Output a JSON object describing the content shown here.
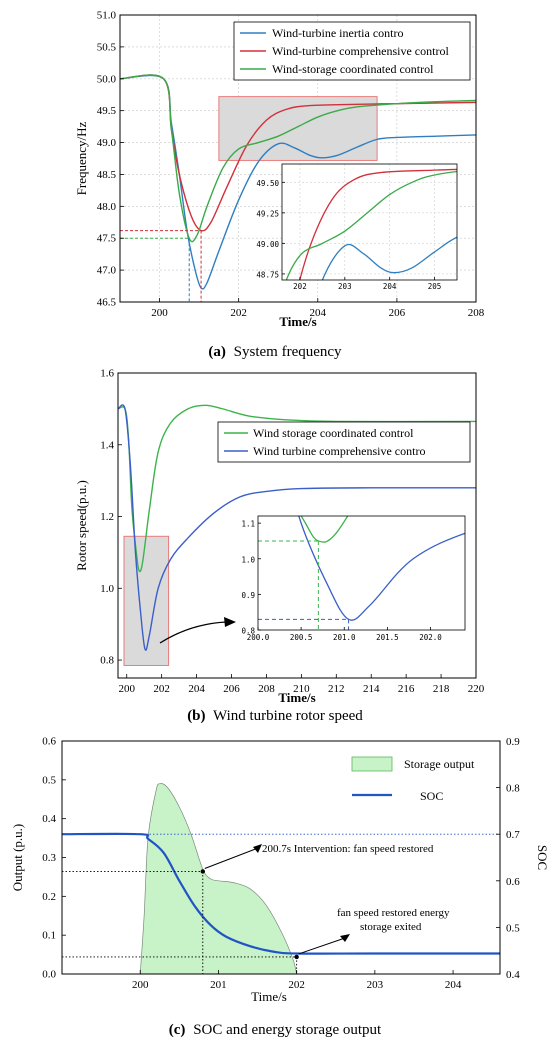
{
  "colors": {
    "blue": "#2f7fc0",
    "red": "#d2303a",
    "green": "#3aaa48",
    "blue_b": "#3b5fc8",
    "green_b": "#3cb44b",
    "soc_blue": "#2154c4",
    "fill_green": "#c8f2c8",
    "box_gray": "#dadada",
    "box_red": "#e87070",
    "grid": "#c8c8c8"
  },
  "chart_data": [
    {
      "type": "line",
      "caption_prefix": "(a)",
      "caption_text": "System frequency",
      "xlabel": "Time/s",
      "ylabel": "Frequency/Hz",
      "xlim": [
        199,
        208
      ],
      "ylim": [
        46.5,
        51.0
      ],
      "xticks": [
        "200",
        "202",
        "204",
        "206",
        "208"
      ],
      "yticks": [
        "46.5",
        "47.0",
        "47.5",
        "48.0",
        "48.5",
        "49.0",
        "49.5",
        "50.0",
        "50.5",
        "51.0"
      ],
      "grid": true,
      "legend_position": "top-right",
      "series": [
        {
          "name": "Wind-turbine inertia contro",
          "color": "blue",
          "points": [
            [
              199,
              50.0
            ],
            [
              200.1,
              50.0
            ],
            [
              200.3,
              49.3
            ],
            [
              200.5,
              48.5
            ],
            [
              200.7,
              47.6
            ],
            [
              200.9,
              47.0
            ],
            [
              201.05,
              46.72
            ],
            [
              201.2,
              46.8
            ],
            [
              201.5,
              47.3
            ],
            [
              202,
              48.1
            ],
            [
              202.5,
              48.7
            ],
            [
              203.0,
              48.98
            ],
            [
              203.4,
              48.92
            ],
            [
              203.8,
              48.8
            ],
            [
              204.1,
              48.76
            ],
            [
              204.5,
              48.8
            ],
            [
              205,
              48.93
            ],
            [
              205.5,
              49.05
            ],
            [
              206,
              49.08
            ],
            [
              207,
              49.1
            ],
            [
              208,
              49.12
            ]
          ]
        },
        {
          "name": "Wind-turbine comprehensive control",
          "color": "red",
          "points": [
            [
              199,
              50.0
            ],
            [
              200.1,
              50.0
            ],
            [
              200.3,
              49.2
            ],
            [
              200.5,
              48.5
            ],
            [
              200.8,
              47.85
            ],
            [
              201.05,
              47.62
            ],
            [
              201.3,
              47.75
            ],
            [
              201.7,
              48.3
            ],
            [
              202.2,
              48.95
            ],
            [
              202.7,
              49.35
            ],
            [
              203.2,
              49.52
            ],
            [
              203.8,
              49.58
            ],
            [
              205,
              49.6
            ],
            [
              206,
              49.61
            ],
            [
              208,
              49.63
            ]
          ]
        },
        {
          "name": "Wind-storage coordinated control",
          "color": "green",
          "points": [
            [
              199,
              50.0
            ],
            [
              200.1,
              50.0
            ],
            [
              200.3,
              49.2
            ],
            [
              200.5,
              48.2
            ],
            [
              200.75,
              47.5
            ],
            [
              200.95,
              47.55
            ],
            [
              201.2,
              48.0
            ],
            [
              201.6,
              48.6
            ],
            [
              202.0,
              48.9
            ],
            [
              202.5,
              49.0
            ],
            [
              203.0,
              49.1
            ],
            [
              203.5,
              49.25
            ],
            [
              204,
              49.4
            ],
            [
              204.5,
              49.5
            ],
            [
              205,
              49.56
            ],
            [
              206,
              49.61
            ],
            [
              207,
              49.64
            ],
            [
              208,
              49.66
            ]
          ]
        }
      ],
      "inset": {
        "xlim": [
          201.6,
          205.5
        ],
        "ylim": [
          48.7,
          49.65
        ],
        "xticks": [
          "202",
          "203",
          "204",
          "205"
        ],
        "yticks": [
          "48.75",
          "49.00",
          "49.25",
          "49.50"
        ]
      }
    },
    {
      "type": "line",
      "caption_prefix": "(b)",
      "caption_text": "Wind turbine rotor speed",
      "xlabel": "Time/s",
      "ylabel": "Rotor speed(p.u.)",
      "xlim": [
        199.5,
        220
      ],
      "ylim": [
        0.75,
        1.6
      ],
      "xticks": [
        "200",
        "202",
        "204",
        "206",
        "208",
        "210",
        "212",
        "214",
        "216",
        "218",
        "220"
      ],
      "yticks": [
        "0.8",
        "1.0",
        "1.2",
        "1.4",
        "1.6"
      ],
      "grid": false,
      "legend_position": "top-right",
      "series": [
        {
          "name": "Wind storage coordinated control",
          "color": "green_b",
          "points": [
            [
              199.5,
              1.5
            ],
            [
              199.9,
              1.5
            ],
            [
              200.1,
              1.42
            ],
            [
              200.3,
              1.22
            ],
            [
              200.55,
              1.1
            ],
            [
              200.7,
              1.05
            ],
            [
              200.9,
              1.07
            ],
            [
              201.3,
              1.22
            ],
            [
              201.8,
              1.38
            ],
            [
              202.5,
              1.46
            ],
            [
              203.5,
              1.5
            ],
            [
              204.5,
              1.51
            ],
            [
              205.5,
              1.5
            ],
            [
              207,
              1.48
            ],
            [
              209,
              1.47
            ],
            [
              212,
              1.465
            ],
            [
              220,
              1.465
            ]
          ]
        },
        {
          "name": "Wind turbine comprehensive contro",
          "color": "blue_b",
          "points": [
            [
              199.5,
              1.5
            ],
            [
              199.9,
              1.5
            ],
            [
              200.2,
              1.35
            ],
            [
              200.5,
              1.1
            ],
            [
              200.8,
              0.93
            ],
            [
              201.05,
              0.83
            ],
            [
              201.3,
              0.87
            ],
            [
              201.8,
              1.0
            ],
            [
              202.5,
              1.08
            ],
            [
              203.5,
              1.14
            ],
            [
              205,
              1.21
            ],
            [
              206.5,
              1.255
            ],
            [
              208,
              1.27
            ],
            [
              210,
              1.278
            ],
            [
              214,
              1.28
            ],
            [
              220,
              1.28
            ]
          ]
        }
      ],
      "inset": {
        "xlim": [
          200.0,
          202.4
        ],
        "ylim": [
          0.8,
          1.12
        ],
        "xticks": [
          "200.0",
          "200.5",
          "201.0",
          "201.5",
          "202.0"
        ],
        "yticks": [
          "0.8",
          "0.9",
          "1.0",
          "1.1"
        ]
      }
    },
    {
      "type": "area",
      "caption_prefix": "(c)",
      "caption_text": "SOC and energy storage output",
      "xlabel": "Time/s",
      "ylabel": "Output (p.u.)",
      "ylabel_right": "SOC",
      "xlim": [
        199,
        204.6
      ],
      "ylim": [
        0,
        0.6
      ],
      "ylim_right": [
        0.4,
        0.9
      ],
      "xticks": [
        "200",
        "201",
        "202",
        "203",
        "204"
      ],
      "yticks": [
        "0.0",
        "0.1",
        "0.2",
        "0.3",
        "0.4",
        "0.5",
        "0.6"
      ],
      "yticks_right": [
        "0.4",
        "0.5",
        "0.6",
        "0.7",
        "0.8",
        "0.9"
      ],
      "grid": false,
      "legend_position": "top-right",
      "series": [
        {
          "name": "Storage output",
          "color": "fill_green",
          "points": [
            [
              200.0,
              0.0
            ],
            [
              200.05,
              0.15
            ],
            [
              200.1,
              0.35
            ],
            [
              200.2,
              0.47
            ],
            [
              200.25,
              0.49
            ],
            [
              200.35,
              0.48
            ],
            [
              200.5,
              0.43
            ],
            [
              200.65,
              0.36
            ],
            [
              200.8,
              0.27
            ],
            [
              200.9,
              0.245
            ],
            [
              201.0,
              0.24
            ],
            [
              201.2,
              0.235
            ],
            [
              201.4,
              0.22
            ],
            [
              201.6,
              0.18
            ],
            [
              201.8,
              0.11
            ],
            [
              201.95,
              0.04
            ],
            [
              202.0,
              0.0
            ]
          ]
        },
        {
          "name": "SOC",
          "color": "soc_blue",
          "points": [
            [
              199,
              0.7
            ],
            [
              200.0,
              0.7
            ],
            [
              200.1,
              0.69
            ],
            [
              200.3,
              0.66
            ],
            [
              200.5,
              0.6
            ],
            [
              200.7,
              0.545
            ],
            [
              200.9,
              0.505
            ],
            [
              201.1,
              0.48
            ],
            [
              201.4,
              0.46
            ],
            [
              201.7,
              0.448
            ],
            [
              202.0,
              0.444
            ],
            [
              203,
              0.444
            ],
            [
              204.6,
              0.444
            ]
          ]
        }
      ],
      "annotations": [
        {
          "text": "200.7s Intervention: fan speed restored"
        },
        {
          "line1": "fan speed restored energy",
          "line2": "storage exited"
        }
      ]
    }
  ]
}
